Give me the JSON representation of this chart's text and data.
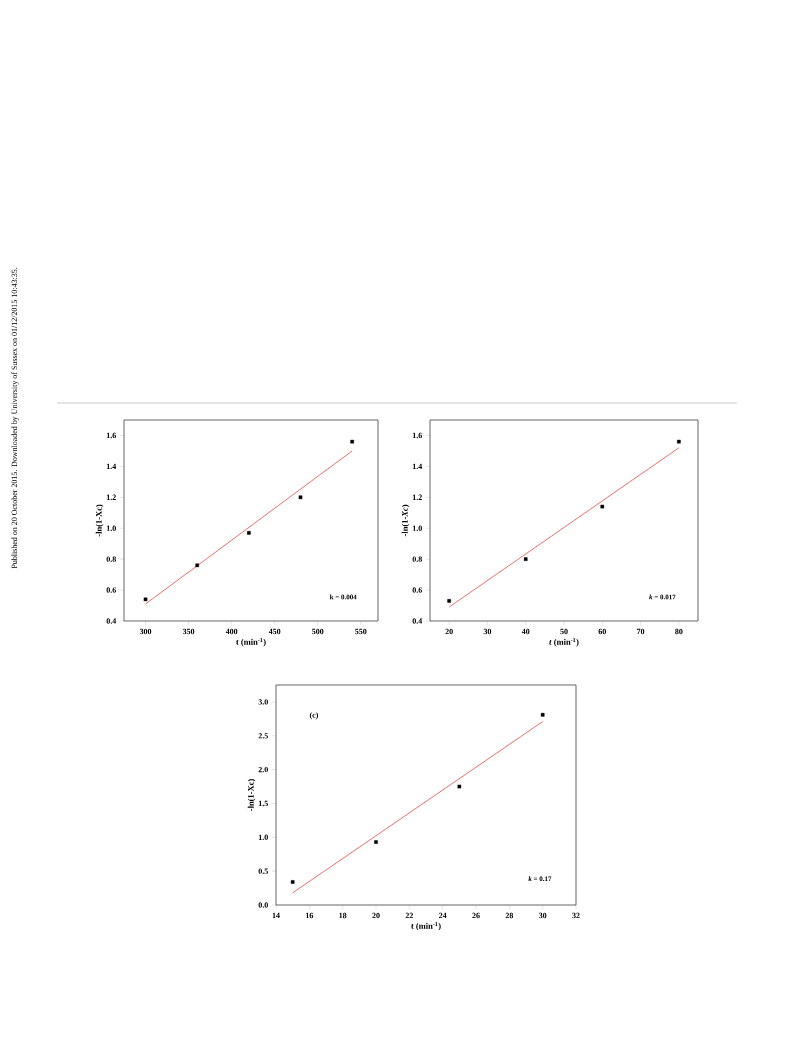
{
  "chart_data": [
    {
      "type": "scatter",
      "xlabel": "t (min$^{-1}$)",
      "ylabel": "-ln(1-Xc)",
      "xlim": [
        275,
        570
      ],
      "ylim": [
        0.4,
        1.7
      ],
      "xticks": [
        300,
        350,
        400,
        450,
        500,
        550
      ],
      "yticks": [
        0.4,
        0.6,
        0.8,
        {
          "value": 1.0,
          "label": "1.0"
        },
        1.2,
        1.4,
        1.6
      ],
      "annotations": [
        "Published on 20 October 2015. Downloaded by University of Sussex on 01/12/2015 10:43:35.",
        "k = 0.004"
      ],
      "series": [
        {
          "color": "#000000",
          "marker": "square",
          "x": [
            300,
            360,
            420,
            480,
            540
          ],
          "values": [
            0.54,
            0.76,
            0.97,
            1.2,
            1.56
          ]
        },
        {
          "type": "line",
          "color": "#e8605a",
          "x": [
            300,
            540
          ],
          "values": [
            0.51,
            1.5
          ]
        }
      ]
    },
    {
      "type": "scatter",
      "xlabel": "*t* (min$^{-1}$)",
      "ylabel": "-ln(1-*Xc*)",
      "xlim": [
        15,
        85
      ],
      "ylim": [
        0.4,
        1.7
      ],
      "xticks": [
        20,
        30,
        40,
        50,
        60,
        70,
        80
      ],
      "yticks": [
        0.4,
        0.6,
        0.8,
        {
          "value": 1.0,
          "label": "1.0"
        },
        1.2,
        1.4,
        1.6
      ],
      "annotations": [
        "*k* = 0.017"
      ],
      "series": [
        {
          "color": "#000000",
          "marker": "square",
          "x": [
            20,
            40,
            60,
            80
          ],
          "values": [
            0.53,
            0.8,
            1.14,
            1.56
          ]
        },
        {
          "type": "line",
          "color": "#e8605a",
          "x": [
            20,
            80
          ],
          "values": [
            0.49,
            1.52
          ]
        }
      ]
    },
    {
      "type": "scatter",
      "xlabel": "t (min$^{-1}$)",
      "ylabel": "-ln(1-Xc)",
      "xlim": [
        14,
        32
      ],
      "ylim": [
        0,
        3.25
      ],
      "xticks": [
        14,
        16,
        18,
        20,
        22,
        24,
        26,
        28,
        30,
        32
      ],
      "yticks": [
        {
          "value": 0,
          "label": "0.0"
        },
        0.5,
        {
          "value": 1,
          "label": "1.0"
        },
        1.5,
        {
          "value": 2,
          "label": "2.0"
        },
        2.5,
        {
          "value": 3,
          "label": "3.0"
        }
      ],
      "annotations": [
        "(c)",
        "*k* = 0.17"
      ],
      "series": [
        {
          "color": "#000000",
          "marker": "square",
          "x": [
            15,
            20,
            25,
            30
          ],
          "values": [
            0.34,
            0.93,
            1.75,
            2.81
          ]
        },
        {
          "type": "line",
          "color": "#e8605a",
          "x": [
            15,
            30
          ],
          "values": [
            0.18,
            2.71
          ]
        }
      ]
    }
  ]
}
